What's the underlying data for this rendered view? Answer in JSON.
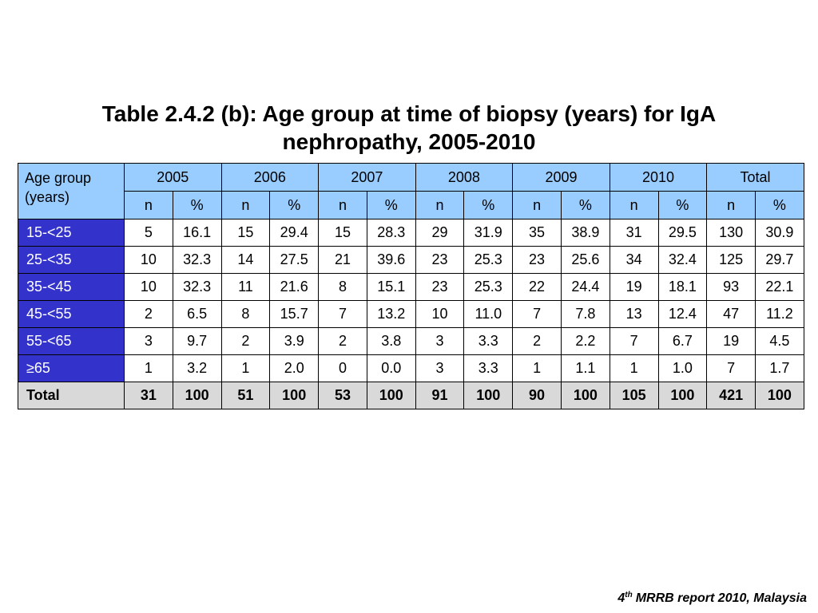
{
  "colors": {
    "header_bg": "#99CCFF",
    "row_label_bg": "#3333CC",
    "row_label_text": "#FFFFFF",
    "total_row_bg": "#D9D9D9"
  },
  "chart_data": {
    "type": "table",
    "title": "Table 2.4.2 (b): Age group at time of biopsy (years) for IgA nephropathy, 2005-2010",
    "row_header_label": "Age group (years)",
    "column_groups": [
      "2005",
      "2006",
      "2007",
      "2008",
      "2009",
      "2010",
      "Total"
    ],
    "sub_columns": [
      "n",
      "%"
    ],
    "rows": [
      {
        "label": "15-<25",
        "values": [
          "5",
          "16.1",
          "15",
          "29.4",
          "15",
          "28.3",
          "29",
          "31.9",
          "35",
          "38.9",
          "31",
          "29.5",
          "130",
          "30.9"
        ]
      },
      {
        "label": "25-<35",
        "values": [
          "10",
          "32.3",
          "14",
          "27.5",
          "21",
          "39.6",
          "23",
          "25.3",
          "23",
          "25.6",
          "34",
          "32.4",
          "125",
          "29.7"
        ]
      },
      {
        "label": "35-<45",
        "values": [
          "10",
          "32.3",
          "11",
          "21.6",
          "8",
          "15.1",
          "23",
          "25.3",
          "22",
          "24.4",
          "19",
          "18.1",
          "93",
          "22.1"
        ]
      },
      {
        "label": "45-<55",
        "values": [
          "2",
          "6.5",
          "8",
          "15.7",
          "7",
          "13.2",
          "10",
          "11.0",
          "7",
          "7.8",
          "13",
          "12.4",
          "47",
          "11.2"
        ]
      },
      {
        "label": "55-<65",
        "values": [
          "3",
          "9.7",
          "2",
          "3.9",
          "2",
          "3.8",
          "3",
          "3.3",
          "2",
          "2.2",
          "7",
          "6.7",
          "19",
          "4.5"
        ]
      },
      {
        "label": "≥65",
        "values": [
          "1",
          "3.2",
          "1",
          "2.0",
          "0",
          "0.0",
          "3",
          "3.3",
          "1",
          "1.1",
          "1",
          "1.0",
          "7",
          "1.7"
        ]
      }
    ],
    "total_row": {
      "label": "Total",
      "values": [
        "31",
        "100",
        "51",
        "100",
        "53",
        "100",
        "91",
        "100",
        "90",
        "100",
        "105",
        "100",
        "421",
        "100"
      ]
    }
  },
  "footer": {
    "edition": "4",
    "ordinal_suffix": "th",
    "text": "MRRB report 2010, Malaysia"
  }
}
